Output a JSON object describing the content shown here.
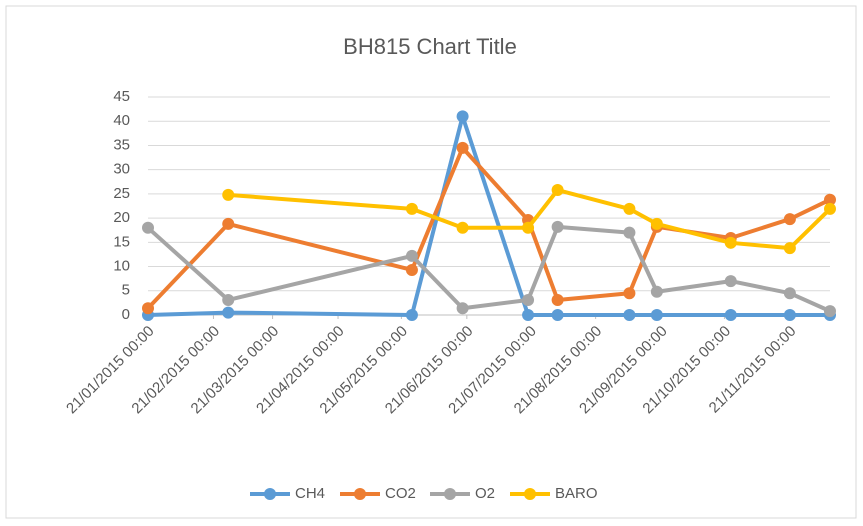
{
  "chart_data": {
    "type": "line",
    "title": "BH815 Chart Title",
    "x": [
      "21/01/2015 00:00",
      "28/02/2015 00:00",
      "26/05/2015 00:00",
      "19/06/2015 00:00",
      "20/07/2015 00:00",
      "03/08/2015 00:00",
      "06/09/2015 00:00",
      "19/09/2015 00:00",
      "24/10/2015 00:00",
      "21/11/2015 00:00",
      "10/12/2015 00:00"
    ],
    "xlim": [
      "21/01/2015 00:00",
      "10/12/2015 00:00"
    ],
    "xticks": [
      "21/01/2015 00:00",
      "21/02/2015 00:00",
      "21/03/2015 00:00",
      "21/04/2015 00:00",
      "21/05/2015 00:00",
      "21/06/2015 00:00",
      "21/07/2015 00:00",
      "21/08/2015 00:00",
      "21/09/2015 00:00",
      "21/10/2015 00:00",
      "21/11/2015 00:00"
    ],
    "ylim": [
      0,
      45
    ],
    "yticks": [
      0,
      5,
      10,
      15,
      20,
      25,
      30,
      35,
      40,
      45
    ],
    "grid": true,
    "legend": "bottom",
    "series": [
      {
        "name": "CH4",
        "color": "#5b9bd5",
        "values": [
          0,
          0.5,
          0,
          41,
          0,
          0,
          0,
          0,
          0,
          0,
          0
        ]
      },
      {
        "name": "CO2",
        "color": "#ed7d31",
        "values": [
          1.4,
          18.8,
          9.3,
          34.5,
          19.6,
          3.1,
          4.5,
          18.2,
          15.9,
          19.8,
          23.8
        ]
      },
      {
        "name": "O2",
        "color": "#a5a5a5",
        "values": [
          18,
          3.1,
          12.2,
          1.4,
          3.1,
          18.2,
          17,
          4.8,
          7,
          4.5,
          0.8
        ]
      },
      {
        "name": "BARO",
        "color": "#ffc000",
        "values": [
          null,
          24.8,
          21.9,
          18,
          18,
          25.8,
          21.9,
          18.8,
          14.9,
          13.8,
          21.9
        ]
      }
    ]
  }
}
